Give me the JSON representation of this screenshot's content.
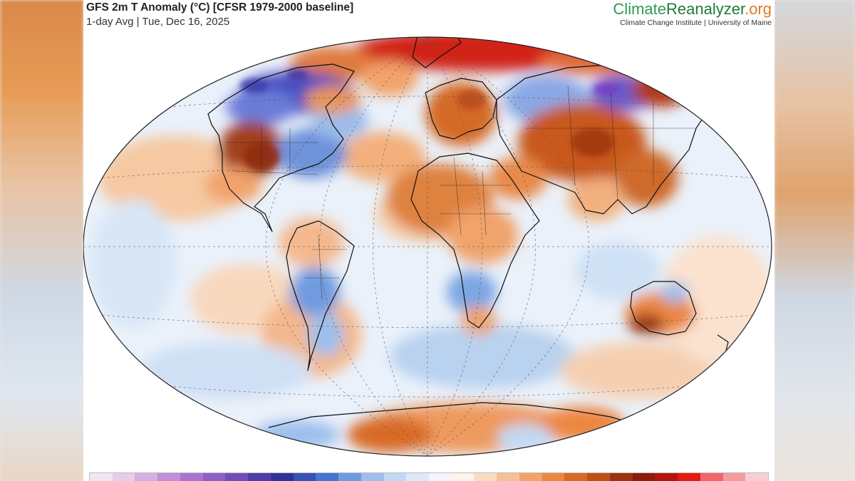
{
  "header": {
    "title": "GFS 2m T Anomaly (°C) [CFSR 1979-2000 baseline]",
    "subtitle": "1-day Avg | Tue, Dec 16, 2025"
  },
  "brand": {
    "name_part1": "Climate",
    "name_part2": "Reanalyzer",
    "name_part3": ".org",
    "tagline": "Climate Change Institute | University of Maine"
  },
  "colors": {
    "colorbar": [
      "#f3e4f3",
      "#e6cdea",
      "#d4b0e0",
      "#c08fd6",
      "#a874cc",
      "#8d5fc2",
      "#6f4fb5",
      "#4f3ea8",
      "#2f3596",
      "#3552b4",
      "#4575d0",
      "#6f9be0",
      "#9dbfec",
      "#c2d8f3",
      "#dde9f8",
      "#f2f6fb",
      "#fdf3ea",
      "#f9dcc2",
      "#f5c097",
      "#f2a36b",
      "#ec8742",
      "#d96a25",
      "#bf4f17",
      "#9a3410",
      "#8c1c0c",
      "#b3140b",
      "#e01b10",
      "#f0666a",
      "#f59c9e",
      "#f8cfd0"
    ]
  }
}
